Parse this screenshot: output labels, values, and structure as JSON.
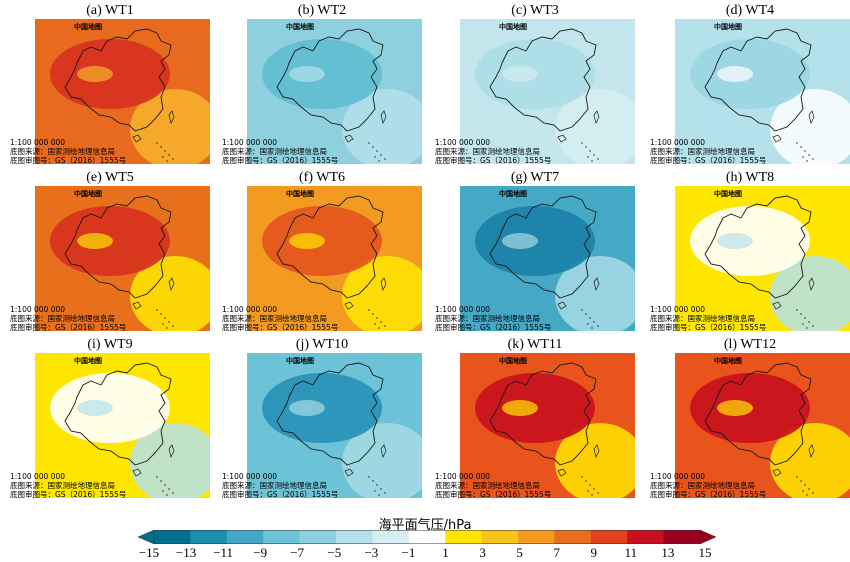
{
  "panels": [
    {
      "title": "(a) WT1",
      "map_label": "中国地图",
      "scale": "1:100 000 000",
      "source": "底图来源：国家测绘地理信息局",
      "approval": "底图审图号：GS（2016）1555号",
      "fill": "#e86a1e",
      "core": "#d7301f",
      "secondary": "#f7b32b"
    },
    {
      "title": "(b) WT2",
      "map_label": "中国地图",
      "scale": "1:100 000 000",
      "source": "底图来源：国家测绘地理信息局",
      "approval": "底图审图号：GS（2016）1555号",
      "fill": "#8fd0de",
      "core": "#5fbcd2",
      "secondary": "#b5e1ea"
    },
    {
      "title": "(c) WT3",
      "map_label": "中国地图",
      "scale": "1:100 000 000",
      "source": "底图来源：国家测绘地理信息局",
      "approval": "底图审图号：GS（2016）1555号",
      "fill": "#c3e6ec",
      "core": "#acdde6",
      "secondary": "#d6eef2"
    },
    {
      "title": "(d) WT4",
      "map_label": "中国地图",
      "scale": "1:100 000 000",
      "source": "底图来源：国家测绘地理信息局",
      "approval": "底图审图号：GS（2016）1555号",
      "fill": "#b5e1ea",
      "core": "#9ad6e2",
      "secondary": "#ffffff"
    },
    {
      "title": "(e) WT5",
      "map_label": "中国地图",
      "scale": "1:100 000 000",
      "source": "底图来源：国家测绘地理信息局",
      "approval": "底图审图号：GS（2016）1555号",
      "fill": "#e8701c",
      "core": "#d7301f",
      "secondary": "#ffe600"
    },
    {
      "title": "(f) WT6",
      "map_label": "中国地图",
      "scale": "1:100 000 000",
      "source": "底图来源：国家测绘地理信息局",
      "approval": "底图审图号：GS（2016）1555号",
      "fill": "#f39a21",
      "core": "#e3541d",
      "secondary": "#ffe600"
    },
    {
      "title": "(g) WT7",
      "map_label": "中国地图",
      "scale": "1:100 000 000",
      "source": "底图来源：国家测绘地理信息局",
      "approval": "底图审图号：GS（2016）1555号",
      "fill": "#45a9c6",
      "core": "#1a7fa8",
      "secondary": "#a6dae4"
    },
    {
      "title": "(h) WT8",
      "map_label": "中国地图",
      "scale": "1:100 000 000",
      "source": "底图来源：国家测绘地理信息局",
      "approval": "底图审图号：GS（2016）1555号",
      "fill": "#ffe600",
      "core": "#ffffff",
      "secondary": "#b5e1ea"
    },
    {
      "title": "(i) WT9",
      "map_label": "中国地图",
      "scale": "1:100 000 000",
      "source": "底图来源：国家测绘地理信息局",
      "approval": "底图审图号：GS（2016）1555号",
      "fill": "#ffe600",
      "core": "#ffffff",
      "secondary": "#b5e1ea"
    },
    {
      "title": "(j) WT10",
      "map_label": "中国地图",
      "scale": "1:100 000 000",
      "source": "底图来源：国家测绘地理信息局",
      "approval": "底图审图号：GS（2016）1555号",
      "fill": "#6cc3d8",
      "core": "#2891b8",
      "secondary": "#a6dae4"
    },
    {
      "title": "(k) WT11",
      "map_label": "中国地图",
      "scale": "1:100 000 000",
      "source": "底图来源：国家测绘地理信息局",
      "approval": "底图审图号：GS（2016）1555号",
      "fill": "#e8541c",
      "core": "#c8101f",
      "secondary": "#ffe600"
    },
    {
      "title": "(l) WT12",
      "map_label": "中国地图",
      "scale": "1:100 000 000",
      "source": "底图来源：国家测绘地理信息局",
      "approval": "底图审图号：GS（2016）1555号",
      "fill": "#e8541c",
      "core": "#c8101f",
      "secondary": "#ffe600"
    }
  ],
  "colorbar": {
    "title": "海平面气压/hPa",
    "ticks": [
      "−15",
      "−13",
      "−11",
      "−9",
      "−7",
      "−5",
      "−3",
      "−1",
      "1",
      "3",
      "5",
      "7",
      "9",
      "11",
      "13",
      "15"
    ],
    "colors": [
      "#036f8f",
      "#1a8fb0",
      "#45a9c6",
      "#6cc3d8",
      "#8fd0de",
      "#b5e1ea",
      "#d6eef2",
      "#ffffff",
      "#ffe600",
      "#f9c419",
      "#f39a21",
      "#e8701c",
      "#e3411d",
      "#c8101f",
      "#99001f"
    ]
  }
}
